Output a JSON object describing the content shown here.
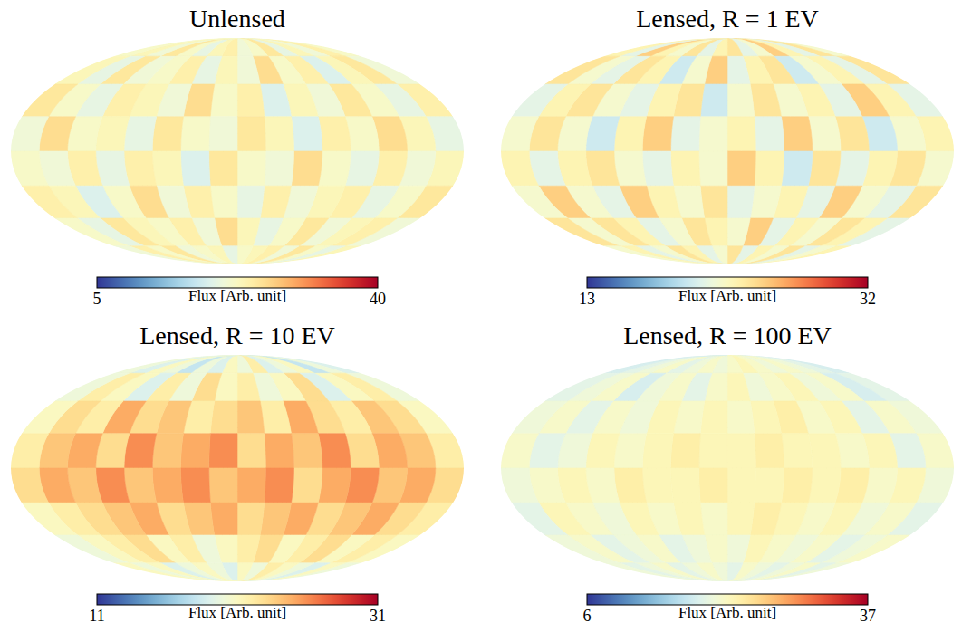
{
  "chart_data": [
    {
      "type": "heatmap",
      "title": "Unlensed",
      "colorbar_label": "Flux [Arb. unit]",
      "colorbar_range": [
        5,
        40
      ],
      "colorbar_ticks": [
        5,
        40
      ],
      "cells": [
        [
          22,
          24,
          21,
          23,
          20,
          25,
          22,
          21,
          24,
          23,
          20,
          22,
          25,
          21,
          23,
          22
        ],
        [
          21,
          25,
          23,
          19,
          24,
          22,
          26,
          21,
          23,
          20,
          24,
          22,
          21,
          25,
          20,
          23
        ],
        [
          24,
          20,
          22,
          25,
          21,
          23,
          19,
          24,
          22,
          26,
          21,
          23,
          24,
          20,
          22,
          25
        ],
        [
          20,
          23,
          26,
          22,
          24,
          19,
          23,
          25,
          21,
          22,
          25,
          20,
          23,
          22,
          26,
          21
        ],
        [
          23,
          21,
          24,
          20,
          22,
          26,
          21,
          22,
          25,
          19,
          23,
          24,
          20,
          24,
          21,
          22
        ],
        [
          25,
          22,
          20,
          24,
          23,
          21,
          24,
          20,
          22,
          24,
          21,
          26,
          22,
          19,
          23,
          24
        ],
        [
          21,
          24,
          23,
          21,
          25,
          22,
          20,
          23,
          26,
          21,
          24,
          22,
          23,
          25,
          20,
          22
        ],
        [
          23,
          20,
          22,
          25,
          21,
          24,
          23,
          22,
          20,
          23,
          22,
          21,
          25,
          22,
          24,
          21
        ]
      ]
    },
    {
      "type": "heatmap",
      "title": "Lensed, R = 1 EV",
      "colorbar_label": "Flux [Arb. unit]",
      "colorbar_range": [
        13,
        32
      ],
      "colorbar_ticks": [
        13,
        32
      ],
      "cells": [
        [
          22,
          24,
          21,
          23,
          25,
          22,
          21,
          24,
          23,
          21,
          24,
          22,
          23,
          25,
          21,
          23
        ],
        [
          24,
          21,
          23,
          22,
          20,
          24,
          23,
          21,
          25,
          22,
          20,
          23,
          24,
          21,
          22,
          24
        ],
        [
          21,
          23,
          25,
          21,
          23,
          22,
          24,
          22,
          20,
          24,
          23,
          21,
          22,
          24,
          23,
          21
        ],
        [
          23,
          22,
          20,
          24,
          22,
          25,
          21,
          23,
          22,
          21,
          25,
          23,
          20,
          22,
          24,
          22
        ],
        [
          22,
          24,
          23,
          21,
          24,
          20,
          23,
          25,
          22,
          23,
          21,
          22,
          24,
          23,
          21,
          23
        ],
        [
          24,
          21,
          22,
          25,
          21,
          23,
          22,
          21,
          24,
          22,
          23,
          25,
          21,
          22,
          25,
          22
        ],
        [
          21,
          23,
          24,
          22,
          23,
          21,
          25,
          22,
          23,
          24,
          22,
          21,
          23,
          24,
          22,
          24
        ],
        [
          23,
          22,
          21,
          24,
          22,
          23,
          21,
          24,
          22,
          21,
          23,
          24,
          22,
          21,
          23,
          22
        ]
      ]
    },
    {
      "type": "heatmap",
      "title": "Lensed, R = 10 EV",
      "colorbar_label": "Flux [Arb. unit]",
      "colorbar_range": [
        11,
        31
      ],
      "colorbar_ticks": [
        11,
        31
      ],
      "cells": [
        [
          19,
          20,
          18,
          21,
          20,
          19,
          22,
          20,
          21,
          19,
          20,
          18,
          20,
          21,
          19,
          20
        ],
        [
          20,
          22,
          21,
          19,
          23,
          21,
          20,
          22,
          21,
          23,
          20,
          22,
          19,
          21,
          22,
          20
        ],
        [
          21,
          23,
          24,
          22,
          23,
          25,
          22,
          24,
          23,
          22,
          24,
          23,
          25,
          22,
          23,
          21
        ],
        [
          22,
          24,
          25,
          23,
          26,
          24,
          25,
          23,
          26,
          25,
          24,
          26,
          23,
          25,
          24,
          22
        ],
        [
          23,
          25,
          24,
          26,
          25,
          23,
          26,
          25,
          24,
          26,
          25,
          24,
          26,
          24,
          25,
          23
        ],
        [
          22,
          23,
          25,
          24,
          23,
          25,
          24,
          23,
          25,
          24,
          23,
          25,
          24,
          23,
          22,
          21
        ],
        [
          21,
          22,
          21,
          23,
          22,
          21,
          23,
          22,
          21,
          20,
          22,
          21,
          23,
          22,
          21,
          20
        ],
        [
          20,
          21,
          19,
          20,
          21,
          22,
          20,
          21,
          19,
          20,
          21,
          20,
          19,
          21,
          20,
          21
        ]
      ]
    },
    {
      "type": "heatmap",
      "title": "Lensed, R = 100 EV",
      "colorbar_label": "Flux [Arb. unit]",
      "colorbar_range": [
        6,
        37
      ],
      "colorbar_ticks": [
        6,
        37
      ],
      "cells": [
        [
          18,
          19,
          20,
          21,
          20,
          21,
          22,
          21,
          20,
          21,
          20,
          19,
          21,
          20,
          19,
          18
        ],
        [
          19,
          18,
          21,
          20,
          22,
          21,
          20,
          22,
          21,
          19,
          21,
          20,
          18,
          21,
          20,
          19
        ],
        [
          20,
          21,
          19,
          22,
          21,
          23,
          22,
          21,
          22,
          21,
          22,
          20,
          21,
          19,
          21,
          20
        ],
        [
          21,
          19,
          22,
          21,
          22,
          22,
          23,
          22,
          22,
          23,
          22,
          21,
          22,
          20,
          19,
          21
        ],
        [
          20,
          22,
          21,
          23,
          22,
          23,
          22,
          22,
          23,
          22,
          22,
          23,
          21,
          22,
          21,
          20
        ],
        [
          19,
          21,
          20,
          22,
          21,
          22,
          23,
          22,
          21,
          22,
          21,
          22,
          20,
          21,
          22,
          19
        ],
        [
          21,
          20,
          19,
          21,
          20,
          21,
          22,
          20,
          21,
          20,
          19,
          21,
          20,
          19,
          21,
          20
        ],
        [
          20,
          19,
          21,
          20,
          19,
          20,
          21,
          19,
          20,
          21,
          20,
          19,
          21,
          20,
          19,
          20
        ]
      ]
    }
  ]
}
